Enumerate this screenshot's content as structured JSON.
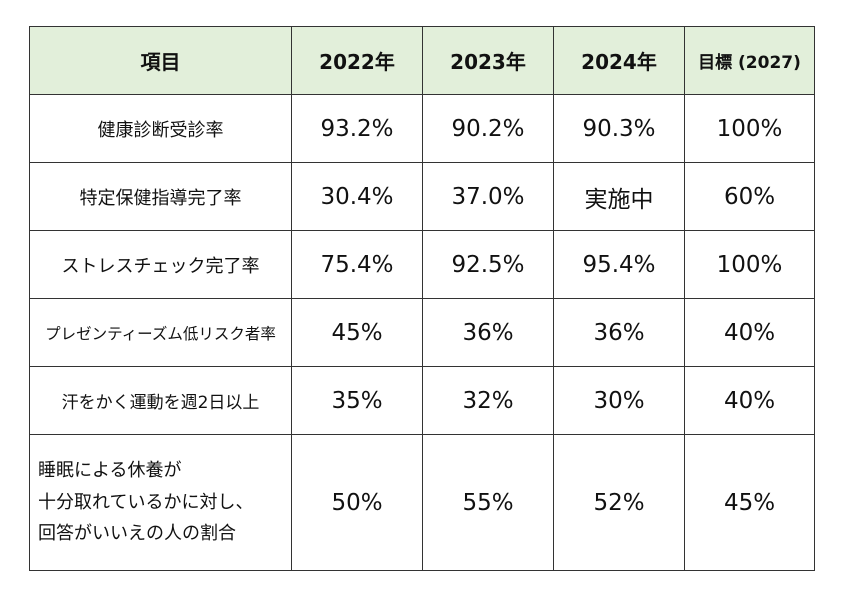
{
  "table": {
    "headers": [
      "項目",
      "2022年",
      "2023年",
      "2024年",
      "目標 (2027)"
    ],
    "rows": [
      {
        "item": "健康診断受診率",
        "values": [
          "93.2%",
          "90.2%",
          "90.3%",
          "100%"
        ]
      },
      {
        "item": "特定保健指導完了率",
        "values": [
          "30.4%",
          "37.0%",
          "実施中",
          "60%"
        ]
      },
      {
        "item": "ストレスチェック完了率",
        "values": [
          "75.4%",
          "92.5%",
          "95.4%",
          "100%"
        ]
      },
      {
        "item": "プレゼンティーズム低リスク者率",
        "values": [
          "45%",
          "36%",
          "36%",
          "40%"
        ]
      },
      {
        "item": "汗をかく運動を週2日以上",
        "values": [
          "35%",
          "32%",
          "30%",
          "40%"
        ]
      },
      {
        "item_lines": [
          "睡眠による休養が",
          "十分取れているかに対し、",
          "回答がいいえの人の割合"
        ],
        "values": [
          "50%",
          "55%",
          "52%",
          "45%"
        ]
      }
    ]
  },
  "colors": {
    "header_background": "#e2efda",
    "border": "#333333"
  }
}
